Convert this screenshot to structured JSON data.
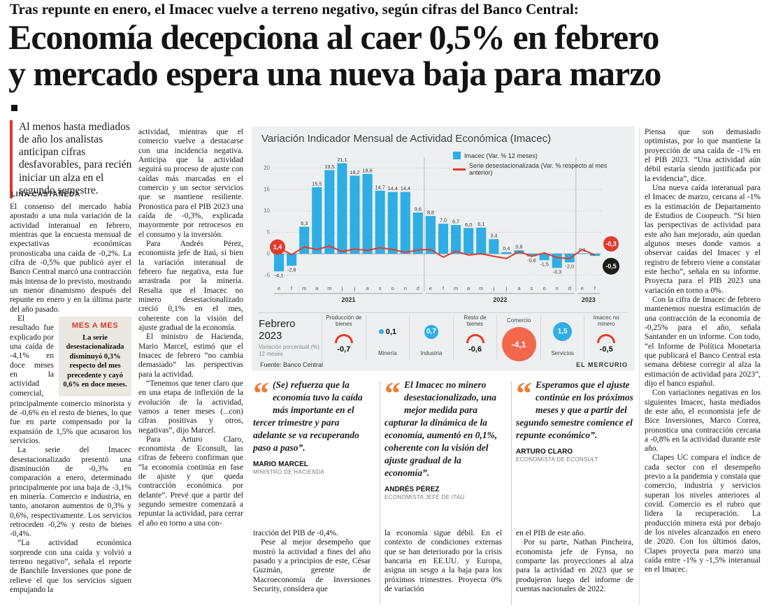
{
  "kicker": "Tras repunte en enero, el Imacec vuelve a terreno negativo, según cifras del Banco Central:",
  "headline": {
    "line1": "Economía decepciona al caer 0,5% en febrero",
    "line2": "y mercado espera una nueva baja para marzo"
  },
  "lead": "Al menos hasta mediados de año los analistas anticipan cifras desfavorables, para recién iniciar un alza en el segundo semestre.",
  "byline": "LINA CASTAÑEDA",
  "mes_a_mes": {
    "label": "MES A MES",
    "text": "La serie desestacionalizada disminuyó 0,3% respecto del mes precedente y cayó 0,6% en doce meses."
  },
  "article": {
    "col1": [
      "El consenso del mercado había apostado a una nula variación de la actividad interanual en febrero, mientras que la encuesta mensual de expectativas económicas pronosticaba una caída de -0,2%. La cifra de -0,5% que publicó ayer el Banco Central marcó una contracción más intensa de lo previsto, mostrando un menor dinamismo después del repunte en enero y en la última parte del año pasado.",
      "El resultado fue explicado por una caída de -4,1% en doce meses en la actividad comercial, principalmente comercio minorista y de -0,6% en el resto de bienes, lo que fue en parte compensado por la expansión de 1,5% que acusaron los servicios.",
      "La serie del Imacec desestacionalizado presentó una disminución de -0,3% en comparación a enero, determinado principalmente por una baja de -3,1% en minería. Comercio e industria, en tanto, anotaron aumentos de 0,3% y 0,6%, respectivamente. Los servicios retroceden -0,2% y resto de bienes -0,4%.",
      "“La actividad económica sorprende con una caída y volvió a terreno negativo”, señala el reporte de Banchile Inversiones que pone de relieve el que los servicios siguen empujando la"
    ],
    "col2": [
      "actividad, mientras que el comercio vuelve a destacarse con una incidencia negativa. Anticipa que la actividad seguirá su proceso de ajuste con caídas más marcadas en el comercio y un sector servicios que se mantiene resiliente. Pronostica para el PIB 2023 una caída de -0,3%, explicada mayormente por retrocesos en el consumo y la inversión.",
      "Para Andrés Pérez, economista jefe de Itaú, si bien la variación interanual de febrero fue negativa, esta fue arrastrada por la minería. Resalta que el Imacec no minero desestacionalizado creció 0,1% en el mes, coherente con la visión del ajuste gradual de la economía.",
      "El ministro de Hacienda, Mario Marcel, estimó que el Imacec de febrero “no cambia demasiado” las perspectivas para la actividad.",
      "“Tenemos que tener claro que en una etapa de inflexión de la evolución de la actividad, vamos a tener meses (...con) cifras positivas y otros, negativas”, dijo Marcel.",
      "Para Arturo Claro, economista de Econsult, las cifras de febrero confirman que “la economía continúa en fase de ajuste y que queda contracción económica por delante”. Prevé que a partir del segundo semestre comenzará a repuntar la actividad, para cerrar el año en torno a una con-"
    ],
    "col3": [
      "tracción del PIB de -0,4%.",
      "Pese al mejor desempeño que mostró la actividad a fines del año pasado y a principios de este, César Guzmán, gerente de Macroeconomía de Inversiones Security, considera que"
    ],
    "col4": [
      "la economía sigue débil. En el contexto de condiciones externas que se han deteriorado por la crisis bancaria en EE.UU. y Europa, asigna un sesgo a la baja para los próximos trimestres. Proyecta 0% de variación"
    ],
    "col5": [
      "en el PIB de este año.",
      "Por su parte, Nathan Pincheira, economista jefe de Fynsa, no comparte las proyecciones al alza para la actividad en 2023 que se produjeron luego del informe de cuentas nacionales de 2022."
    ],
    "col6": [
      "Piensa que son demasiado optimistas, por lo que mantiene la proyección de una caída de -1% en el PIB 2023. “Una actividad aún débil estaría siendo justificada por la evidencia”, dice.",
      "Una nueva caída interanual para el Imacec de marzo, cercana al -1% es la estimación de Departamento de Estudios de Coopeuch. “Si bien las perspectivas de actividad para este año han mejorado, aún quedan algunos meses donde vamos a observar caídas del Imacec y el registro de febrero viene a constatar este hecho”, señala en su informe. Proyecta para el PIB 2023 una variación en torno a 0%.",
      "Con la cifra de Imacec de febrero mantenemos nuestra estimación de una contracción de la economía de -0,25% para el año, señala Santander en un informe. Con todo, “el Informe de Política Monetaria que publicará el Banco Central esta semana debiese corregir al alza la estimación de actividad para 2023”, dijo el banco español.",
      "Con variaciones negativas en los siguientes Imacec, hasta mediados de este año, el economista jefe de Bice Inversiones, Marco Correa, pronostica una contracción cercana a -0,8% en la actividad durante este año.",
      "Clapes UC compara el índice de cada sector con el desempeño previo a la pandemia y constata que comercio, industria y servicios superan los niveles anteriores al covid. Comercio es el rubro que lidera la recuperación. La producción minera está por debajo de los niveles alcanzados en enero de 2020. Con los últimos datos, Clapes proyecta para marzo una caída entre -1% y -1,5% interanual en el Imacec."
    ]
  },
  "quotes": [
    {
      "text": "(Se) refuerza que la economía tuvo la caída más importante en el tercer trimestre y para adelante se va recuperando paso a paso”.",
      "name": "MARIO MARCEL",
      "title": "MINISTRO DE HACIENDA"
    },
    {
      "text": "El Imacec no minero desestacionalizado, una mejor medida para capturar la dinámica de la economía, aumentó en 0,1%, coherente con la visión del ajuste gradual de la economía”.",
      "name": "ANDRÉS PÉREZ",
      "title": "ECONOMISTA JEFE DE ITAÚ"
    },
    {
      "text": "Esperamos que el ajuste continúe en los próximos meses y que a partir del segundo semestre comience el repunte económico”.",
      "name": "ARTURO CLARO",
      "title": "ECONOMISTA DE ECONSULT"
    }
  ],
  "chart_data": {
    "type": "bar",
    "title": "Variación Indicador Mensual de Actividad Económica (Imacec)",
    "x_labels": [
      "e",
      "f",
      "m",
      "a",
      "m",
      "j",
      "j",
      "a",
      "s",
      "o",
      "n",
      "d",
      "e",
      "f",
      "m",
      "a",
      "m",
      "j",
      "j",
      "a",
      "s",
      "o",
      "n",
      "d",
      "e",
      "f"
    ],
    "years": [
      {
        "label": "2021",
        "start": 0,
        "end": 11
      },
      {
        "label": "2022",
        "start": 12,
        "end": 23
      },
      {
        "label": "2023",
        "start": 24,
        "end": 25
      }
    ],
    "series": [
      {
        "name": "Imacec (Var. % 12 meses)",
        "type": "bar",
        "color": "#2eaee4",
        "values": [
          -4.1,
          -2.8,
          6.3,
          15.5,
          19.5,
          21.1,
          18.2,
          18.6,
          14.7,
          14.4,
          14.4,
          9.6,
          8.8,
          7.0,
          6.7,
          6.0,
          6.1,
          3.4,
          0.4,
          0.8,
          -0.6,
          -1.5,
          -3.3,
          -2.0,
          0.1,
          -0.5
        ]
      },
      {
        "name": "Serie desestacionalizada (Var. % respecto al mes anterior)",
        "type": "line",
        "color": "#e23a2e",
        "values": [
          1.4,
          -0.2,
          1.6,
          1.0,
          1.8,
          0.5,
          1.1,
          0.8,
          1.4,
          1.0,
          0.3,
          0.9,
          1.0,
          -0.8,
          0.6,
          -0.3,
          0.0,
          -0.6,
          -1.1,
          0.5,
          -0.6,
          0.2,
          -0.9,
          -1.1,
          1.0,
          -0.3
        ]
      }
    ],
    "bar_labels": [
      "-4,1",
      "-2,8",
      "6,3",
      "15,5",
      "19,5",
      "21,1",
      "18,2",
      "18,6",
      "14,7",
      "14,4",
      "14,4",
      "9,6",
      "8,8",
      "7,0",
      "6,7",
      "6,0",
      "6,1",
      "3,4",
      "0,4",
      "0,8",
      "-0,6",
      "-1,5",
      "-3,3",
      "-2,0",
      "0,1",
      null
    ],
    "yticks": [
      20,
      15,
      10,
      5,
      0,
      -5
    ],
    "ylim": [
      -6.5,
      22.5
    ],
    "callouts": {
      "line_start": "1,4",
      "line_end": "-0,3",
      "bar_end": "-0,5"
    },
    "source": "Fuente: Banco Central",
    "credit": "EL MERCURIO",
    "february_panel": {
      "title": "Febrero 2023",
      "subtitle": "Variación porcentual (%) 12 meses",
      "sectors": [
        {
          "name": "Producción de bienes",
          "value": -0.7,
          "label": "-0,7"
        },
        {
          "name": "Minería",
          "value": 0.1,
          "label": "0,1"
        },
        {
          "name": "Industria",
          "value": 0.7,
          "label": "0,7"
        },
        {
          "name": "Resto de bienes",
          "value": -0.6,
          "label": "-0,6"
        },
        {
          "name": "Comercio",
          "value": -4.1,
          "label": "-4,1"
        },
        {
          "name": "Servicios",
          "value": 1.5,
          "label": "1,5"
        },
        {
          "name": "Imacec no minero",
          "value": -0.5,
          "label": "-0,5"
        }
      ]
    }
  }
}
